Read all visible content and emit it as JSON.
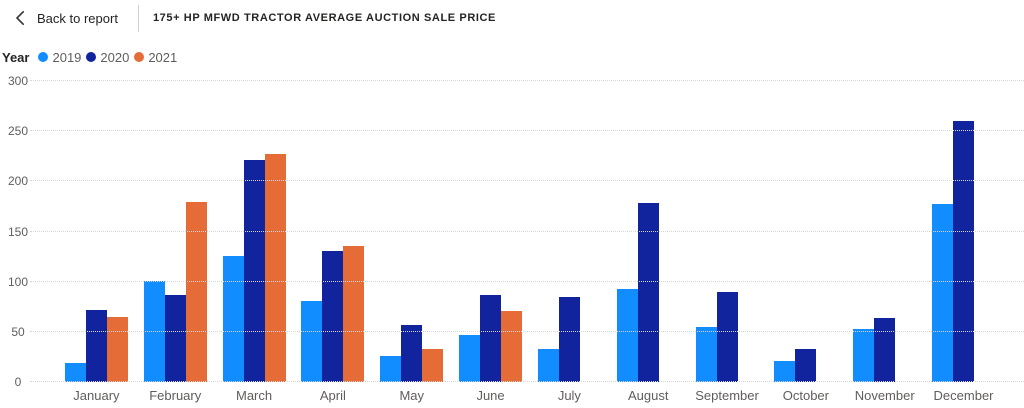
{
  "header": {
    "back_label": "Back to report",
    "title": "175+ HP MFWD TRACTOR AVERAGE AUCTION SALE PRICE"
  },
  "chart_data": {
    "type": "bar",
    "title": "175+ HP MFWD TRACTOR AVERAGE AUCTION SALE PRICE",
    "legend_title": "Year",
    "legend_position": "top-left",
    "grid": "dotted horizontal",
    "xlabel": "",
    "ylabel": "",
    "ylim": [
      0,
      300
    ],
    "yticks": [
      0,
      50,
      100,
      150,
      200,
      250,
      300
    ],
    "categories": [
      "January",
      "February",
      "March",
      "April",
      "May",
      "June",
      "July",
      "August",
      "September",
      "October",
      "November",
      "December"
    ],
    "series": [
      {
        "name": "2019",
        "color": "#118DFF",
        "values": [
          19,
          101,
          126,
          81,
          26,
          47,
          33,
          93,
          55,
          21,
          53,
          177
        ]
      },
      {
        "name": "2020",
        "color": "#12239E",
        "values": [
          72,
          87,
          221,
          131,
          57,
          87,
          85,
          178,
          90,
          33,
          64,
          260
        ]
      },
      {
        "name": "2021",
        "color": "#E66C37",
        "values": [
          65,
          179,
          227,
          136,
          33,
          71,
          null,
          null,
          null,
          null,
          null,
          null
        ]
      }
    ]
  }
}
